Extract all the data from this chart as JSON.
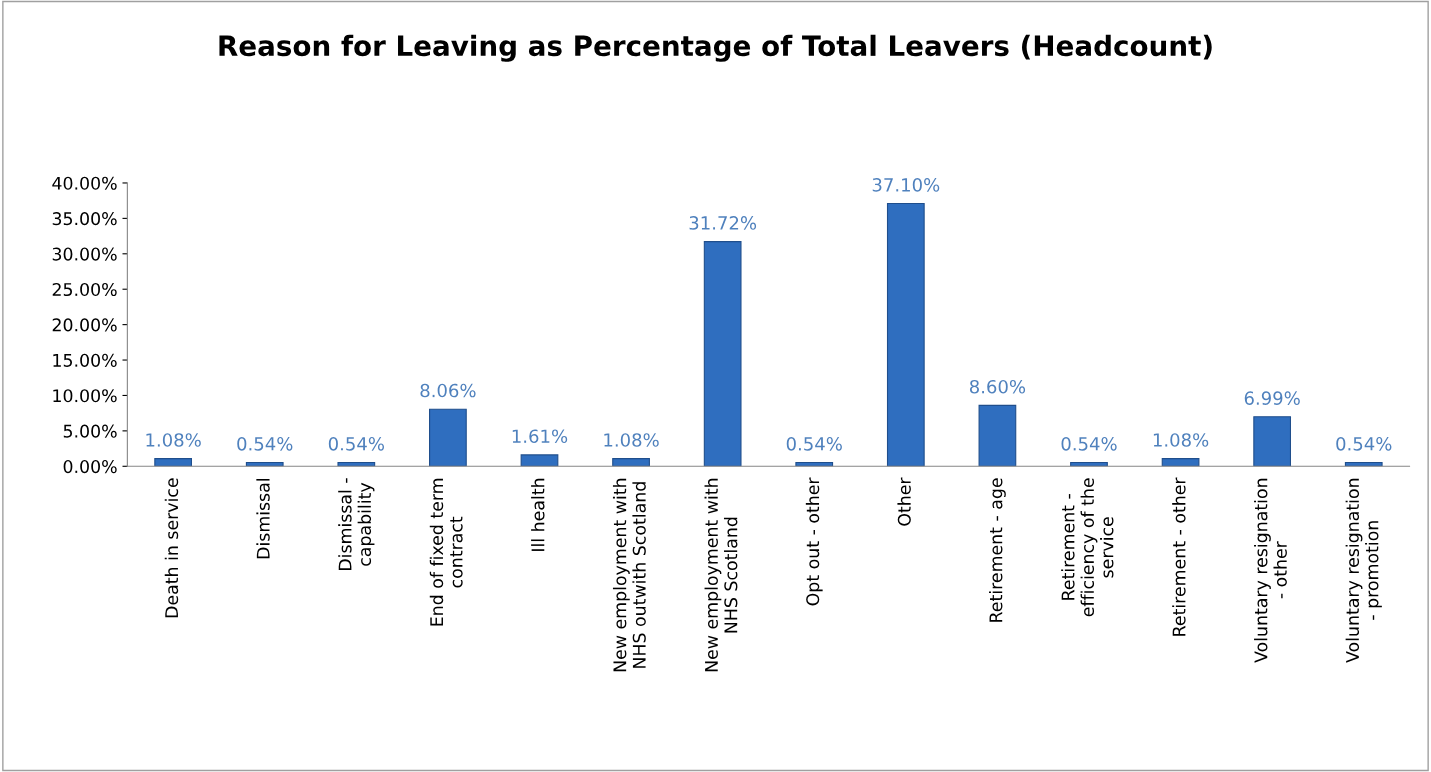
{
  "chart_data": {
    "type": "bar",
    "title": "Reason for Leaving as Percentage of Total Leavers (Headcount)",
    "categories": [
      "Death in service",
      "Dismissal",
      "Dismissal - capability",
      "End of fixed term contract",
      "Ill health",
      "New employment with NHS outwith Scotland",
      "New employment with NHS Scotland",
      "Opt out - other",
      "Other",
      "Retirement - age",
      "Retirement - efficiency of the service",
      "Retirement - other",
      "Voluntary resignation - other",
      "Voluntary resignation - promotion"
    ],
    "values": [
      1.08,
      0.54,
      0.54,
      8.06,
      1.61,
      1.08,
      31.72,
      0.54,
      37.1,
      8.6,
      0.54,
      1.08,
      6.99,
      0.54
    ],
    "value_labels": [
      "1.08%",
      "0.54%",
      "0.54%",
      "8.06%",
      "1.61%",
      "1.08%",
      "31.72%",
      "0.54%",
      "37.10%",
      "8.60%",
      "0.54%",
      "1.08%",
      "6.99%",
      "0.54%"
    ],
    "color": "#2f6ebf",
    "ylim": [
      0,
      40
    ],
    "yticks": [
      {
        "value": 0,
        "label": "0.00%"
      },
      {
        "value": 5,
        "label": "5.00%"
      },
      {
        "value": 10,
        "label": "10.00%"
      },
      {
        "value": 15,
        "label": "15.00%"
      },
      {
        "value": 20,
        "label": "20.00%"
      },
      {
        "value": 25,
        "label": "25.00%"
      },
      {
        "value": 30,
        "label": "30.00%"
      },
      {
        "value": 35,
        "label": "35.00%"
      },
      {
        "value": 40,
        "label": "40.00%"
      }
    ],
    "grid": false,
    "legend": false
  }
}
